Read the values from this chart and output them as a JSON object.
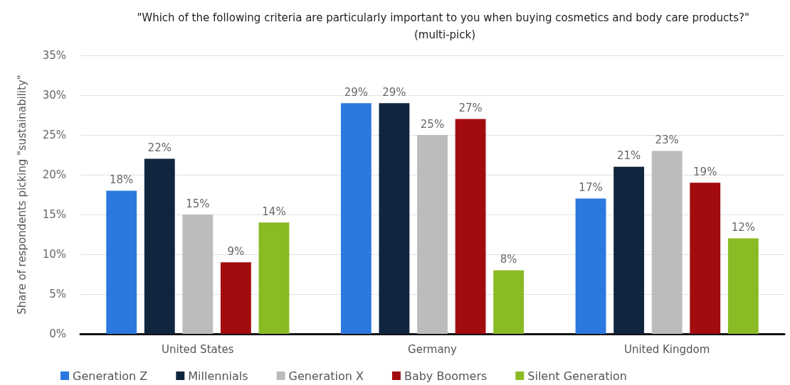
{
  "chart_data": {
    "type": "bar",
    "title": "\"Which of the following criteria are particularly important to you when buying cosmetics and body care products?\" (multi-pick)",
    "ylabel": "Share of respondents picking \"sustainability\"",
    "categories": [
      "United States",
      "Germany",
      "United Kingdom"
    ],
    "series": [
      {
        "name": "Generation Z",
        "color": "#2b78de",
        "values": [
          18,
          29,
          17
        ],
        "value_labels": [
          "18%",
          "29%",
          "17%"
        ]
      },
      {
        "name": "Millennials",
        "color": "#10263f",
        "values": [
          22,
          29,
          21
        ],
        "value_labels": [
          "22%",
          "29%",
          "21%"
        ]
      },
      {
        "name": "Generation X",
        "color": "#bcbcbc",
        "values": [
          15,
          25,
          23
        ],
        "value_labels": [
          "15%",
          "25%",
          "23%"
        ]
      },
      {
        "name": "Baby Boomers",
        "color": "#a30c0e",
        "values": [
          9,
          27,
          19
        ],
        "value_labels": [
          "9%",
          "27%",
          "19%"
        ]
      },
      {
        "name": "Silent Generation",
        "color": "#8aba24",
        "values": [
          14,
          8,
          12
        ],
        "value_labels": [
          "14%",
          "8%",
          "12%"
        ]
      }
    ],
    "ylim": [
      0,
      35
    ],
    "yticks": [
      {
        "value": 0,
        "label": "0%"
      },
      {
        "value": 5,
        "label": "5%"
      },
      {
        "value": 10,
        "label": "10%"
      },
      {
        "value": 15,
        "label": "15%"
      },
      {
        "value": 20,
        "label": "20%"
      },
      {
        "value": 25,
        "label": "25%"
      },
      {
        "value": 30,
        "label": "30%"
      },
      {
        "value": 35,
        "label": "35%"
      }
    ],
    "grid": "y",
    "legend": "bottom"
  }
}
